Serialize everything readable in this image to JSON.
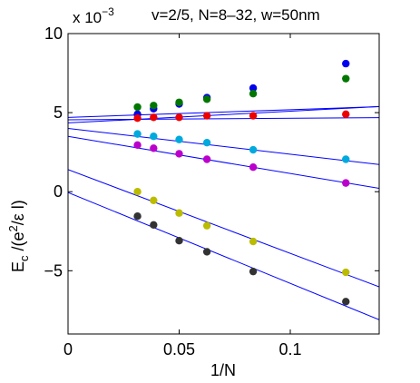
{
  "chart_data": {
    "type": "scatter",
    "title": "v=2/5, N=8–32, w=50nm",
    "xlabel": "1/N",
    "ylabel_main": "E",
    "ylabel_sub": "c",
    "ylabel_rest": " /(e",
    "ylabel_sup": "2",
    "ylabel_tail": "/ε l)",
    "y_multiplier_base": "x 10",
    "y_multiplier_exp": "−3",
    "xlim": [
      0,
      0.14
    ],
    "ylim": [
      -9,
      10
    ],
    "x_ticks": [
      0,
      0.05,
      0.1
    ],
    "x_tick_labels": [
      "0",
      "0.05",
      "0.1"
    ],
    "y_ticks": [
      -5,
      0,
      5,
      10
    ],
    "y_tick_labels": [
      "−5",
      "0",
      "5",
      "10"
    ],
    "grid": false,
    "x": [
      0.03125,
      0.0385,
      0.05,
      0.0625,
      0.0833,
      0.125
    ],
    "series": [
      {
        "color": "#0000ee",
        "values": [
          4.9,
          5.25,
          5.55,
          5.95,
          6.55,
          8.1
        ],
        "fit": [
          4.35,
          7.4
        ]
      },
      {
        "color": "#007700",
        "values": [
          5.35,
          5.45,
          5.65,
          5.85,
          6.2,
          7.15
        ],
        "fit": [
          4.7,
          4.85
        ]
      },
      {
        "color": "#ee0000",
        "values": [
          4.65,
          4.7,
          4.7,
          4.8,
          4.8,
          4.9
        ],
        "fit": [
          4.55,
          0.95
        ]
      },
      {
        "color": "#00aadd",
        "values": [
          3.65,
          3.5,
          3.3,
          3.1,
          2.65,
          2.05
        ],
        "fit": [
          4.0,
          -16.3
        ]
      },
      {
        "color": "#bb00cc",
        "values": [
          2.95,
          2.75,
          2.4,
          2.05,
          1.55,
          0.55
        ],
        "fit": [
          3.5,
          -23.5
        ]
      },
      {
        "color": "#bbbb00",
        "values": [
          0.0,
          -0.55,
          -1.35,
          -2.15,
          -3.15,
          -5.1
        ],
        "fit": [
          1.4,
          -53.0
        ]
      },
      {
        "color": "#333333",
        "values": [
          -1.55,
          -2.1,
          -3.1,
          -3.8,
          -5.05,
          -6.95
        ],
        "fit": [
          -0.05,
          -57.5
        ]
      }
    ]
  }
}
